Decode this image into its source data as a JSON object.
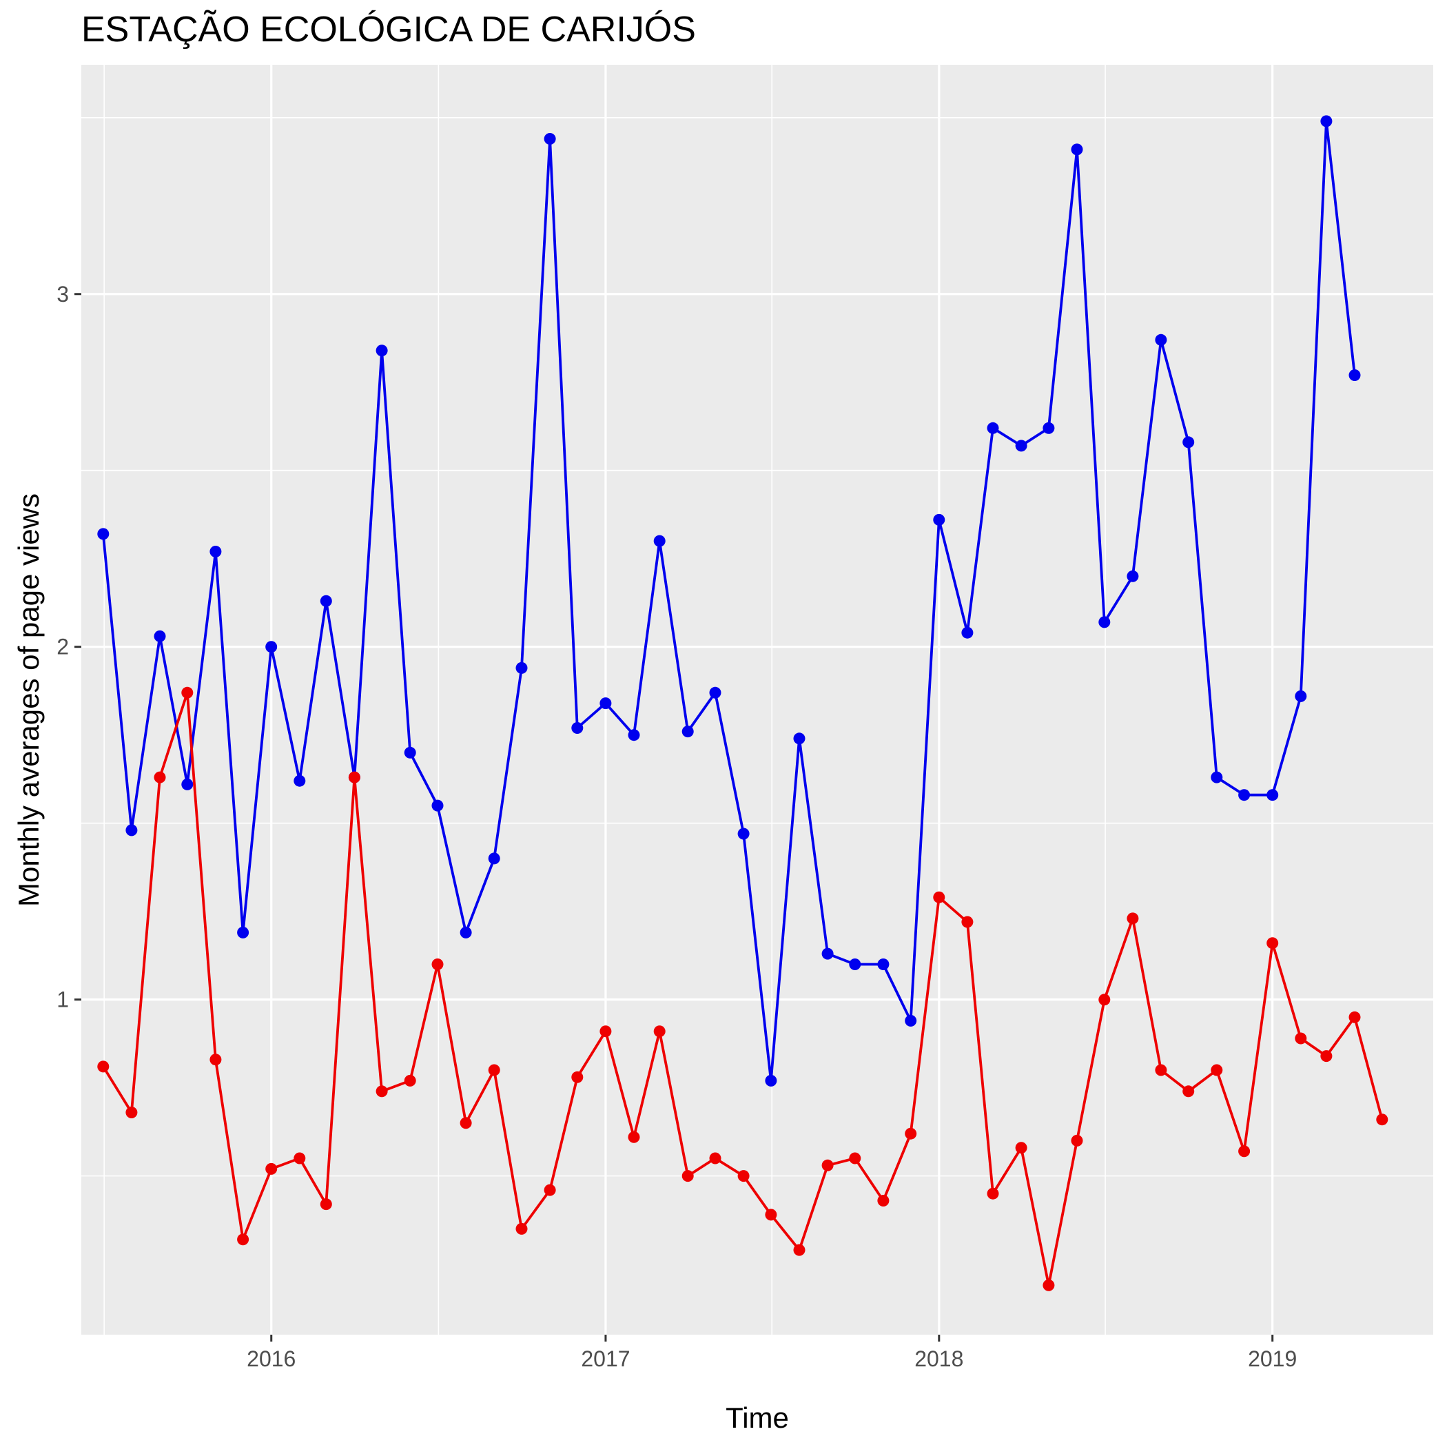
{
  "chart_data": {
    "type": "line",
    "title": "ESTAÇÃO ECOLÓGICA DE CARIJÓS",
    "xlabel": "Time",
    "ylabel": "Monthly averages of page views",
    "xlim": [
      "2015-06-07",
      "2019-06-26"
    ],
    "ylim": [
      0.05,
      3.65
    ],
    "x_ticks": [
      "2016",
      "2017",
      "2018",
      "2019"
    ],
    "y_ticks": [
      1,
      2,
      3
    ],
    "grid": true,
    "legend": "none",
    "colors": {
      "panel": "#ebebeb",
      "grid": "#ffffff",
      "series_1": "#0000ee",
      "series_2": "#ee0000"
    },
    "series": [
      {
        "color": "#0000ee",
        "x": [
          "2015-07-01",
          "2015-08-01",
          "2015-09-01",
          "2015-10-01",
          "2015-11-01",
          "2015-12-01",
          "2016-01-01",
          "2016-02-01",
          "2016-03-01",
          "2016-04-01",
          "2016-05-01",
          "2016-06-01",
          "2016-07-01",
          "2016-08-01",
          "2016-09-01",
          "2016-10-01",
          "2016-11-01",
          "2016-12-01",
          "2017-01-01",
          "2017-02-01",
          "2017-03-01",
          "2017-04-01",
          "2017-05-01",
          "2017-06-01",
          "2017-07-01",
          "2017-08-01",
          "2017-09-01",
          "2017-10-01",
          "2017-11-01",
          "2017-12-01",
          "2018-01-01",
          "2018-02-01",
          "2018-03-01",
          "2018-04-01",
          "2018-05-01",
          "2018-06-01",
          "2018-07-01",
          "2018-08-01",
          "2018-09-01",
          "2018-10-01",
          "2018-11-01",
          "2018-12-01",
          "2019-01-01",
          "2019-02-01",
          "2019-03-01",
          "2019-04-01"
        ],
        "values": [
          2.32,
          1.48,
          2.03,
          1.61,
          2.27,
          1.19,
          2.0,
          1.62,
          2.13,
          1.63,
          2.84,
          1.7,
          1.55,
          1.19,
          1.4,
          1.94,
          3.44,
          1.77,
          1.84,
          1.75,
          2.3,
          1.76,
          1.87,
          1.47,
          0.77,
          1.74,
          1.13,
          1.1,
          1.1,
          0.94,
          2.36,
          2.04,
          2.62,
          2.57,
          2.62,
          3.41,
          2.07,
          2.2,
          2.87,
          2.58,
          1.63,
          1.58,
          1.58,
          1.86,
          3.49,
          2.77
        ]
      },
      {
        "color": "#ee0000",
        "x": [
          "2015-07-01",
          "2015-08-01",
          "2015-09-01",
          "2015-10-01",
          "2015-11-01",
          "2015-12-01",
          "2016-01-01",
          "2016-02-01",
          "2016-03-01",
          "2016-04-01",
          "2016-05-01",
          "2016-06-01",
          "2016-07-01",
          "2016-08-01",
          "2016-09-01",
          "2016-10-01",
          "2016-11-01",
          "2016-12-01",
          "2017-01-01",
          "2017-02-01",
          "2017-03-01",
          "2017-04-01",
          "2017-05-01",
          "2017-06-01",
          "2017-07-01",
          "2017-08-01",
          "2017-09-01",
          "2017-10-01",
          "2017-11-01",
          "2017-12-01",
          "2018-01-01",
          "2018-02-01",
          "2018-03-01",
          "2018-04-01",
          "2018-05-01",
          "2018-06-01",
          "2018-07-01",
          "2018-08-01",
          "2018-09-01",
          "2018-10-01",
          "2018-11-01",
          "2018-12-01",
          "2019-01-01",
          "2019-02-01",
          "2019-03-01",
          "2019-04-01",
          "2019-05-01"
        ],
        "values": [
          0.81,
          0.68,
          1.63,
          1.87,
          0.83,
          0.32,
          0.52,
          0.55,
          0.42,
          1.63,
          0.74,
          0.77,
          1.1,
          0.65,
          0.8,
          0.35,
          0.46,
          0.78,
          0.91,
          0.61,
          0.91,
          0.5,
          0.55,
          0.5,
          0.39,
          0.29,
          0.53,
          0.55,
          0.43,
          0.62,
          1.29,
          1.22,
          0.45,
          0.58,
          0.19,
          0.6,
          1.0,
          1.23,
          0.8,
          0.74,
          0.8,
          0.57,
          1.16,
          0.89,
          0.84,
          0.95,
          0.66
        ]
      }
    ]
  }
}
